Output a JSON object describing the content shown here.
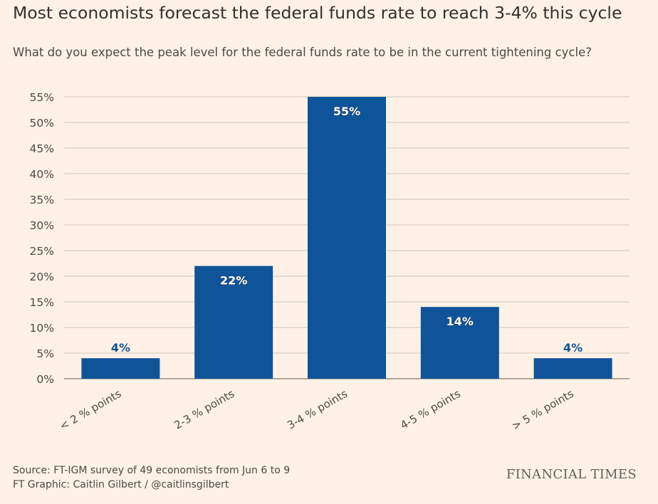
{
  "header": {
    "title": "Most economists forecast the federal funds rate to reach 3-4% this cycle",
    "subtitle": "What do you expect the peak level for the federal funds rate to be in the current tightening cycle?"
  },
  "footer": {
    "source": "Source: FT-IGM survey of 49 economists from Jun 6 to 9",
    "credit": "FT Graphic: Caitlin Gilbert / @caitlinsgilbert",
    "brand": "FINANCIAL TIMES"
  },
  "chart_data": {
    "type": "bar",
    "categories": [
      "< 2 % points",
      "2-3 % points",
      "3-4 % points",
      "4-5 % points",
      "> 5 % points"
    ],
    "values": [
      4,
      22,
      55,
      14,
      4
    ],
    "data_labels": [
      "4%",
      "22%",
      "55%",
      "14%",
      "4%"
    ],
    "yticks": [
      "0%",
      "5%",
      "10%",
      "15%",
      "20%",
      "25%",
      "30%",
      "35%",
      "40%",
      "45%",
      "50%",
      "55%"
    ],
    "ylim": [
      0,
      55
    ],
    "grid": true,
    "colors": {
      "bar": "#0f5499",
      "label_inside": "#ffffff",
      "label_outside": "#0f5499",
      "grid": "#cec6b9",
      "axis_text": "#4d4845"
    }
  }
}
